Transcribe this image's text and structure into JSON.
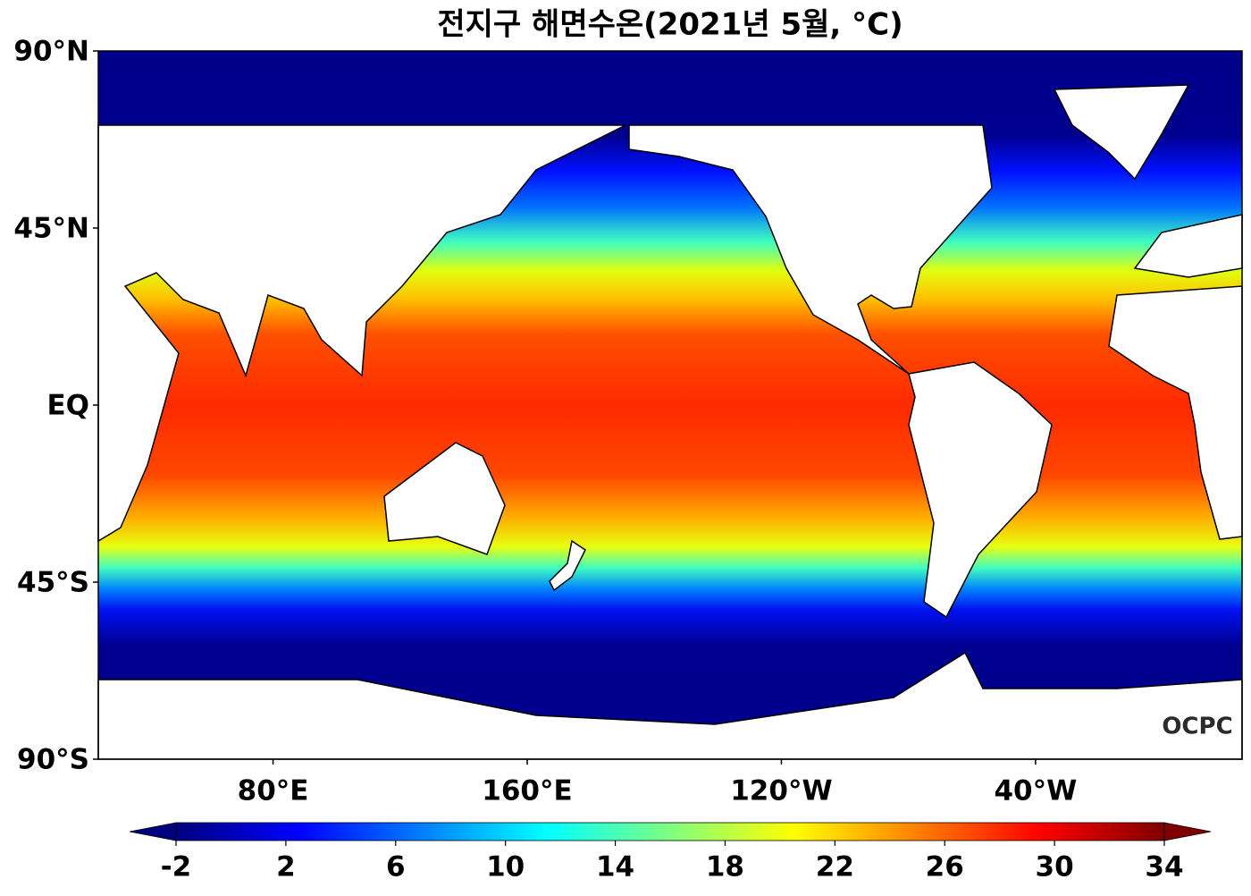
{
  "map": {
    "title": "전지구 해면수온(2021년 5월, °C)",
    "lon_range": [
      25,
      385
    ],
    "lat_range": [
      -90,
      90
    ],
    "lat_ticks": [
      {
        "value": 90,
        "label": "90°N"
      },
      {
        "value": 45,
        "label": "45°N"
      },
      {
        "value": 0,
        "label": "EQ"
      },
      {
        "value": -45,
        "label": "45°S"
      },
      {
        "value": -90,
        "label": "90°S"
      }
    ],
    "lon_ticks": [
      {
        "value": 80,
        "label": "80°E"
      },
      {
        "value": 160,
        "label": "160°E"
      },
      {
        "value": -120,
        "label": "120°W"
      },
      {
        "value": -40,
        "label": "40°W"
      }
    ],
    "logo": "OCPC",
    "colorbar": {
      "colormap": "jet",
      "range": [
        -2,
        34
      ],
      "ticks": [
        -2,
        2,
        6,
        10,
        14,
        18,
        22,
        26,
        30,
        34
      ]
    }
  }
}
